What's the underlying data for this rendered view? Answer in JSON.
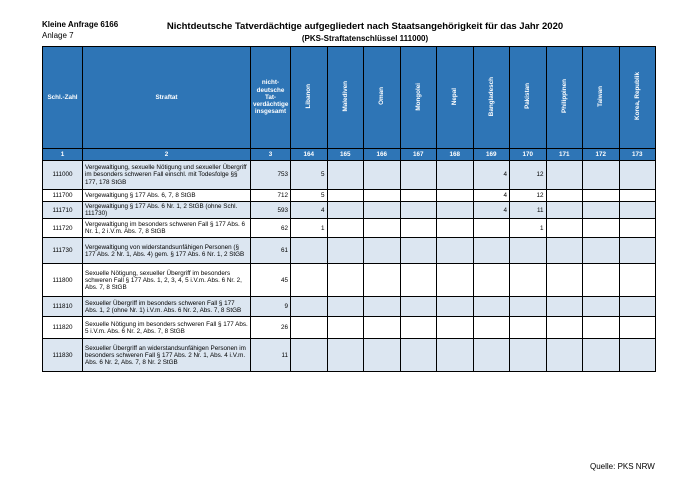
{
  "header": {
    "reference": "Kleine Anfrage 6166",
    "attachment": "Anlage 7",
    "title": "Nichtdeutsche Tatverdächtige aufgegliedert nach Staatsangehörigkeit für das Jahr 2020",
    "subtitle": "(PKS-Straftatenschlüssel 111000)"
  },
  "table": {
    "columns": [
      "Schl.-Zahl",
      "Straftat",
      "nicht-deutsche Tat-verdächtige insgesamt",
      "Libanon",
      "Malediven",
      "Oman",
      "Mongolei",
      "Nepal",
      "Bangladesch",
      "Pakistan",
      "Philippinen",
      "Taiwan",
      "Korea, Republik"
    ],
    "column_numbers": [
      1,
      2,
      3,
      164,
      165,
      166,
      167,
      168,
      169,
      170,
      171,
      172,
      173
    ],
    "rows": [
      [
        111000,
        "Vergewaltigung, sexuelle Nötigung und sexueller Übergriff im besonders schweren Fall einschl. mit Todesfolge §§ 177, 178 StGB",
        753,
        5,
        null,
        null,
        null,
        null,
        4,
        12,
        null,
        null,
        null
      ],
      [
        111700,
        "Vergewaltigung § 177 Abs. 6, 7, 8 StGB",
        712,
        5,
        null,
        null,
        null,
        null,
        4,
        12,
        null,
        null,
        null
      ],
      [
        111710,
        "Vergewaltigung § 177 Abs. 6 Nr. 1, 2 StGB (ohne Schl. 111730)",
        593,
        4,
        null,
        null,
        null,
        null,
        4,
        11,
        null,
        null,
        null
      ],
      [
        111720,
        "Vergewaltigung im besonders schweren Fall § 177 Abs. 6 Nr. 1, 2 i.V.m. Abs. 7, 8 StGB",
        62,
        1,
        null,
        null,
        null,
        null,
        null,
        1,
        null,
        null,
        null
      ],
      [
        111730,
        "Vergewaltigung von widerstandsunfähigen Personen (§ 177 Abs. 2 Nr. 1, Abs. 4) gem. § 177 Abs. 6 Nr. 1, 2 StGB",
        61,
        null,
        null,
        null,
        null,
        null,
        null,
        null,
        null,
        null,
        null
      ],
      [
        111800,
        "Sexuelle Nötigung, sexueller Übergriff im besonders schweren Fall § 177 Abs. 1, 2, 3, 4, 5 i.V.m. Abs. 6 Nr. 2, Abs. 7, 8 StGB",
        45,
        null,
        null,
        null,
        null,
        null,
        null,
        null,
        null,
        null,
        null
      ],
      [
        111810,
        "Sexueller Übergriff im besonders schweren Fall § 177 Abs. 1, 2 (ohne Nr. 1) i.V.m. Abs. 6 Nr. 2, Abs. 7, 8 StGB",
        9,
        null,
        null,
        null,
        null,
        null,
        null,
        null,
        null,
        null,
        null
      ],
      [
        111820,
        "Sexuelle Nötigung im besonders schweren Fall § 177 Abs. 5 i.V.m. Abs. 6 Nr. 2, Abs. 7, 8 StGB",
        26,
        null,
        null,
        null,
        null,
        null,
        null,
        null,
        null,
        null,
        null
      ],
      [
        111830,
        "Sexueller Übergriff an widerstandsunfähigen Personen im besonders schweren Fall § 177 Abs. 2 Nr. 1, Abs. 4 i.V.m. Abs. 6 Nr. 2, Abs. 7, 8 Nr. 2 StGB",
        11,
        null,
        null,
        null,
        null,
        null,
        null,
        null,
        null,
        null,
        null
      ]
    ]
  },
  "footer": {
    "source": "Quelle: PKS NRW"
  }
}
